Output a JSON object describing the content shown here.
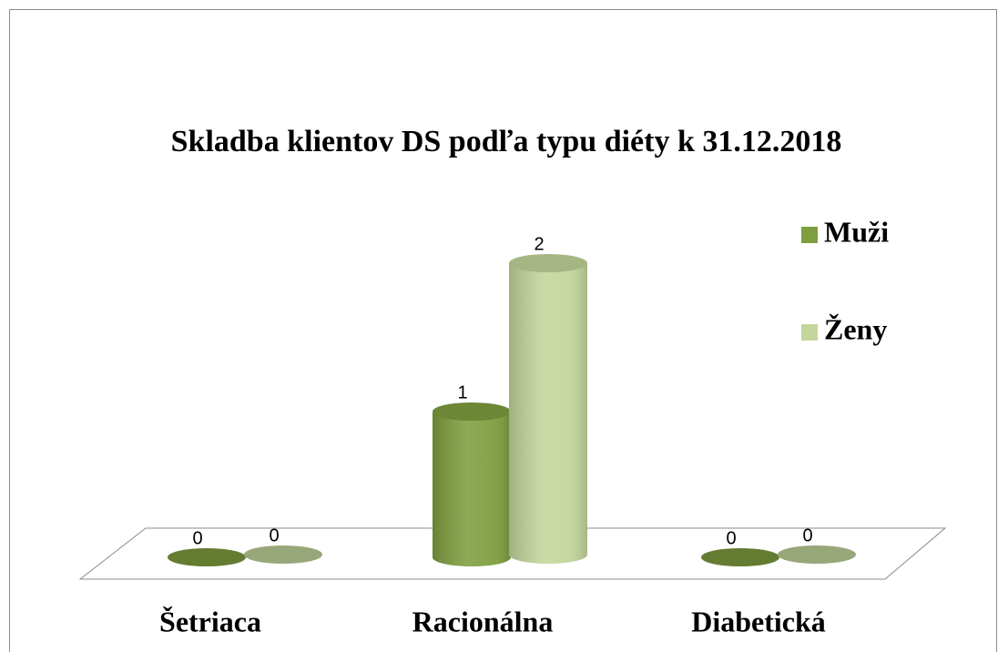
{
  "chart_data": {
    "type": "bar3d-cylinder",
    "title": "Skladba klientov DS podľa typu diéty k 31.12.2018",
    "categories": [
      "Šetriaca",
      "Racionálna",
      "Diabetická"
    ],
    "series": [
      {
        "name": "Muži",
        "color": "#7f9f3f",
        "values": [
          0,
          1,
          0
        ]
      },
      {
        "name": "Ženy",
        "color": "#c3d69b",
        "values": [
          0,
          2,
          0
        ]
      }
    ],
    "legend": "right"
  }
}
